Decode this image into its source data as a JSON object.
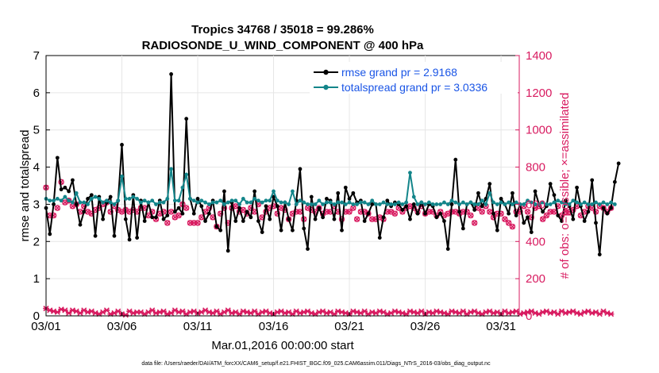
{
  "chart_data": {
    "type": "line",
    "title_line1": "Tropics 34768 / 35018 = 99.286%",
    "title_line2": "RADIOSONDE_U_WIND_COMPONENT @ 400 hPa",
    "xlabel": "Mar.01,2016 00:00:00 start",
    "ylabel_left": "rmse and totalspread",
    "ylabel_right": "# of obs: o=possible; ×=assimilated",
    "footer": "data file: /Users/raeder/DAI/ATM_forcXX/CAM6_setup/f.e21.FHIST_BGC.f09_025.CAM6assim.011/Diags_NTrS_2016-03/obs_diag_output.nc",
    "xlim": [
      0,
      31.2
    ],
    "ylim_left": [
      0,
      7
    ],
    "ylim_right": [
      0,
      1400
    ],
    "x_ticks": [
      {
        "day": 0,
        "label": "03/01"
      },
      {
        "day": 5,
        "label": "03/06"
      },
      {
        "day": 10,
        "label": "03/11"
      },
      {
        "day": 15,
        "label": "03/16"
      },
      {
        "day": 20,
        "label": "03/21"
      },
      {
        "day": 25,
        "label": "03/26"
      },
      {
        "day": 30,
        "label": "03/31"
      }
    ],
    "y_ticks_left": [
      "0",
      "1",
      "2",
      "3",
      "4",
      "5",
      "6",
      "7"
    ],
    "y_ticks_right": [
      "0",
      "200",
      "400",
      "600",
      "800",
      "1000",
      "1200",
      "1400"
    ],
    "x_step_days": 0.25,
    "colors": {
      "rmse": "#000000",
      "spread": "#13858a",
      "obs": "#d81b60",
      "legend_text": "#1a55e6"
    },
    "series": [
      {
        "name": "rmse grand pr = 2.9168",
        "axis": "left",
        "color": "#000000",
        "values": [
          2.9,
          2.2,
          3.0,
          4.25,
          3.4,
          3.45,
          3.35,
          3.65,
          3.0,
          2.45,
          2.8,
          3.15,
          3.25,
          2.15,
          3.2,
          2.6,
          3.05,
          3.2,
          2.15,
          3.1,
          4.6,
          2.6,
          2.05,
          3.25,
          2.1,
          3.1,
          2.55,
          3.05,
          2.65,
          2.65,
          3.1,
          2.6,
          2.7,
          6.5,
          2.8,
          2.9,
          2.75,
          5.3,
          3.15,
          2.75,
          3.15,
          2.95,
          2.55,
          2.75,
          3.1,
          2.4,
          2.3,
          3.35,
          1.75,
          3.05,
          2.55,
          2.9,
          2.55,
          2.8,
          2.65,
          3.35,
          2.55,
          2.25,
          2.95,
          2.6,
          3.2,
          2.95,
          2.3,
          3.05,
          2.6,
          2.3,
          3.1,
          3.95,
          2.35,
          1.8,
          3.2,
          2.6,
          2.9,
          2.65,
          3.15,
          3.1,
          2.6,
          3.3,
          2.3,
          3.45,
          3.15,
          3.3,
          3.05,
          3.1,
          2.55,
          2.75,
          3.0,
          3.0,
          2.1,
          2.65,
          3.1,
          2.95,
          3.05,
          3.0,
          2.85,
          2.95,
          2.6,
          3.0,
          2.75,
          3.05,
          2.75,
          3.0,
          2.95,
          2.65,
          2.75,
          2.55,
          1.8,
          3.0,
          4.2,
          2.8,
          2.35,
          3.0,
          3.05,
          2.85,
          3.3,
          2.95,
          3.15,
          3.55,
          2.75,
          2.3,
          3.15,
          3.0,
          2.75,
          3.3,
          2.7,
          3.0,
          2.5,
          2.65,
          2.25,
          3.35,
          3.0,
          2.8,
          2.95,
          3.55,
          3.25,
          2.7,
          2.55,
          3.1,
          2.95,
          2.6,
          3.45,
          2.95,
          2.55,
          2.8,
          3.65,
          2.5,
          1.65,
          2.9,
          2.75,
          2.9,
          3.6,
          4.1
        ]
      },
      {
        "name": "totalspread grand pr = 3.0336",
        "axis": "left",
        "color": "#13858a",
        "values": [
          3.15,
          3.1,
          3.1,
          3.15,
          3.1,
          3.2,
          3.1,
          3.05,
          3.3,
          3.05,
          3.05,
          3.0,
          3.15,
          3.2,
          3.15,
          3.05,
          3.1,
          3.05,
          3.0,
          3.1,
          3.75,
          3.15,
          3.15,
          3.2,
          3.15,
          3.05,
          3.1,
          3.05,
          3.1,
          3.0,
          3.05,
          3.05,
          3.15,
          3.95,
          3.1,
          3.1,
          3.45,
          3.8,
          3.15,
          3.1,
          3.05,
          3.1,
          3.05,
          3.0,
          3.05,
          3.05,
          3.1,
          3.0,
          3.05,
          3.1,
          3.1,
          3.0,
          3.15,
          3.05,
          3.05,
          3.15,
          3.1,
          3.05,
          3.1,
          3.1,
          3.35,
          3.1,
          3.05,
          3.05,
          3.0,
          3.35,
          3.0,
          3.1,
          3.05,
          3.0,
          3.0,
          3.0,
          3.1,
          3.0,
          3.05,
          3.05,
          3.0,
          3.05,
          3.05,
          3.0,
          3.05,
          3.0,
          3.0,
          3.05,
          3.05,
          3.0,
          3.1,
          3.0,
          3.0,
          3.05,
          3.0,
          3.0,
          3.0,
          3.05,
          3.0,
          3.05,
          3.85,
          3.2,
          3.0,
          3.05,
          3.0,
          3.05,
          3.0,
          3.0,
          3.0,
          3.05,
          3.0,
          3.1,
          3.05,
          3.0,
          3.05,
          3.0,
          3.05,
          3.0,
          3.0,
          3.1,
          3.0,
          3.3,
          3.05,
          3.0,
          3.05,
          3.0,
          3.05,
          3.0,
          3.05,
          3.0,
          3.0,
          3.1,
          3.05,
          3.0,
          3.0,
          3.05,
          3.0,
          3.0,
          3.05,
          3.1,
          3.05,
          3.0,
          3.0,
          3.1,
          3.05,
          3.0,
          3.05,
          3.0,
          3.0,
          3.05,
          3.0,
          3.05,
          3.0,
          3.05,
          3.0
        ]
      },
      {
        "name": "obs possible",
        "axis": "right",
        "color": "#d81b60",
        "marker": "circle",
        "values": [
          690,
          540,
          540,
          580,
          720,
          610,
          620,
          590,
          600,
          560,
          590,
          560,
          550,
          570,
          580,
          600,
          610,
          560,
          590,
          570,
          560,
          570,
          560,
          570,
          560,
          580,
          580,
          540,
          560,
          520,
          550,
          560,
          500,
          560,
          530,
          540,
          600,
          580,
          500,
          500,
          500,
          530,
          560,
          580,
          530,
          480,
          550,
          580,
          500,
          580,
          590,
          560,
          570,
          550,
          580,
          560,
          600,
          530,
          560,
          580,
          590,
          550,
          580,
          570,
          520,
          550,
          560,
          560,
          520,
          580,
          570,
          560,
          580,
          550,
          560,
          560,
          590,
          560,
          520,
          560,
          560,
          580,
          520,
          560,
          560,
          550,
          520,
          520,
          530,
          520,
          560,
          560,
          550,
          580,
          560,
          580,
          590,
          580,
          560,
          590,
          550,
          560,
          560,
          540,
          560,
          540,
          550,
          560,
          560,
          550,
          560,
          560,
          540,
          500,
          580,
          560,
          590,
          560,
          530,
          550,
          550,
          520,
          500,
          480,
          560,
          560,
          590,
          560,
          530,
          580,
          590,
          520,
          540,
          560,
          560,
          590,
          540,
          560,
          560,
          570,
          590,
          540,
          560,
          590,
          580,
          560,
          590,
          580,
          560,
          580
        ]
      },
      {
        "name": "obs assimilated",
        "axis": "right",
        "color": "#d81b60",
        "marker": "cross",
        "values": [
          40,
          30,
          25,
          20,
          35,
          30,
          15,
          30,
          25,
          15,
          30,
          20,
          25,
          15,
          10,
          20,
          30,
          10,
          15,
          25,
          10,
          5,
          25,
          15,
          20,
          20,
          10,
          20,
          30,
          15,
          20,
          25,
          10,
          15,
          30,
          20,
          25,
          10,
          20,
          25,
          15,
          20,
          30,
          20,
          15,
          25,
          10,
          20,
          30,
          15,
          20,
          10,
          25,
          20,
          15,
          25,
          10,
          20,
          25,
          15,
          10,
          20,
          25,
          15,
          20,
          10,
          25,
          15,
          20,
          25,
          15,
          10,
          20,
          25,
          15,
          20,
          10,
          25,
          20,
          15,
          10,
          25,
          20,
          15,
          25,
          10,
          20,
          15,
          25,
          20,
          10,
          15,
          25,
          20,
          15,
          10,
          25,
          20,
          15,
          25,
          10,
          20,
          15,
          25,
          20,
          15,
          10,
          25,
          20,
          15,
          25,
          10,
          20,
          25,
          15,
          10,
          20,
          25,
          15,
          20,
          10,
          25,
          15,
          20,
          25,
          10,
          15,
          20,
          25,
          15,
          10,
          20,
          25,
          15,
          20,
          10,
          25,
          15,
          20,
          25,
          15,
          10,
          20,
          25,
          15,
          20,
          10,
          25,
          15,
          10
        ]
      }
    ]
  }
}
